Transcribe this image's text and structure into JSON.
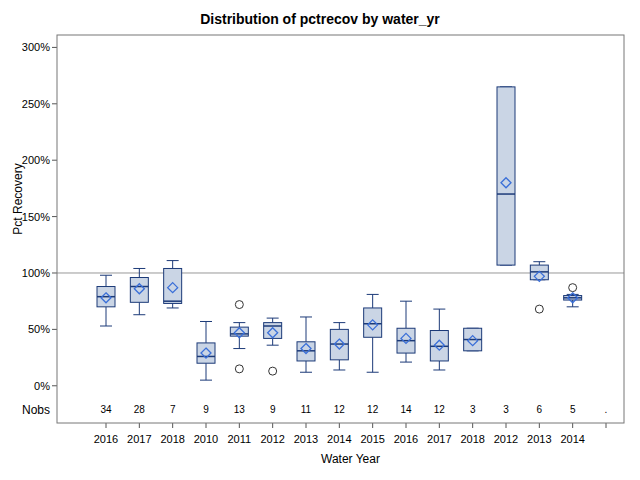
{
  "chart_data": {
    "type": "box",
    "title": "Distribution of pctrecov by water_yr",
    "x_label": "Water Year",
    "y_label": "Pct Recovery",
    "categories": [
      "2016",
      "2017",
      "2018",
      "2010",
      "2011",
      "2012",
      "2013",
      "2014",
      "2015",
      "2016",
      "2017",
      "2018",
      "2012",
      "2013",
      "2014",
      null
    ],
    "min": [
      53,
      63,
      69,
      5,
      33,
      36,
      12,
      14,
      12,
      21,
      14,
      31,
      107,
      94,
      70,
      null
    ],
    "q1": [
      70,
      74,
      73,
      20,
      44,
      42,
      22,
      23,
      43,
      29,
      22,
      31,
      107,
      94,
      76,
      null
    ],
    "median": [
      79,
      88,
      75,
      26,
      46,
      53,
      31,
      37,
      55,
      40,
      35,
      41,
      170,
      101,
      78,
      null
    ],
    "q3": [
      88,
      96,
      104,
      38,
      52,
      56,
      39,
      50,
      69,
      51,
      49,
      51,
      265,
      107,
      80,
      null
    ],
    "max": [
      98,
      104,
      111,
      57,
      56,
      60,
      61,
      56,
      81,
      75,
      68,
      51,
      265,
      110,
      81,
      null
    ],
    "mean": [
      78,
      86,
      87,
      29,
      47,
      47,
      33,
      37,
      54,
      42,
      36,
      40,
      180,
      97,
      78,
      null
    ],
    "outliers": [
      [],
      [],
      [],
      [],
      [
        72,
        15
      ],
      [
        13
      ],
      [],
      [],
      [],
      [],
      [],
      [],
      [],
      [
        68
      ],
      [
        87
      ],
      []
    ],
    "nobs_label": "Nobs",
    "nobs": [
      34,
      28,
      7,
      9,
      13,
      9,
      11,
      12,
      12,
      14,
      12,
      3,
      3,
      6,
      5,
      "."
    ],
    "reference_line": 100,
    "ylim": [
      -33,
      311
    ],
    "yticks": [
      {
        "value": 0,
        "label": "0%"
      },
      {
        "value": 50,
        "label": "50%"
      },
      {
        "value": 100,
        "label": "100%"
      },
      {
        "value": 150,
        "label": "150%"
      },
      {
        "value": 200,
        "label": "200%"
      },
      {
        "value": 250,
        "label": "250%"
      },
      {
        "value": 300,
        "label": "300%"
      }
    ],
    "color": "#cad5e5",
    "grid": false
  }
}
